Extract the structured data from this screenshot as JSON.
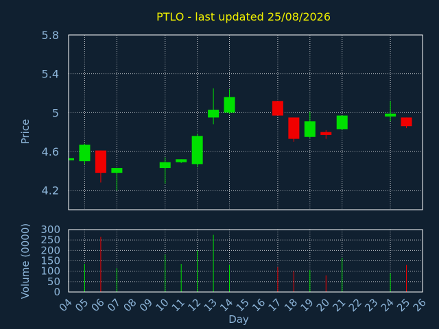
{
  "chart_data": {
    "type": "candlestick",
    "title": "PTLO - last updated 25/08/2026",
    "xlabel": "Day",
    "colors": {
      "background": "#102030",
      "axis_text": "#8cb4d8",
      "title": "#f0f000",
      "frame": "#ffffff",
      "grid": "#ffffff",
      "up": "#00e000",
      "down": "#f00000"
    },
    "price_panel": {
      "ylabel": "Price",
      "ylim": [
        4.0,
        5.8
      ],
      "yticks": [
        "4.2",
        "4.6",
        "5",
        "5.4",
        "5.8"
      ],
      "ytick_values": [
        4.2,
        4.6,
        5.0,
        5.4,
        5.8
      ]
    },
    "volume_panel": {
      "ylabel": "Volume (0000)",
      "ylim": [
        0,
        300
      ],
      "yticks": [
        "0",
        "50",
        "100",
        "150",
        "200",
        "250",
        "300"
      ],
      "ytick_values": [
        0,
        50,
        100,
        150,
        200,
        250,
        300
      ]
    },
    "xticks": [
      "04",
      "05",
      "06",
      "07",
      "08",
      "09",
      "10",
      "11",
      "12",
      "13",
      "14",
      "15",
      "16",
      "17",
      "18",
      "19",
      "20",
      "21",
      "22",
      "23",
      "24",
      "25",
      "26"
    ],
    "grid_days": [
      "05",
      "07",
      "10",
      "12",
      "14",
      "17",
      "19",
      "21",
      "24"
    ],
    "candles": [
      {
        "day": "04",
        "open": 4.52,
        "high": 4.53,
        "low": 4.51,
        "close": 4.53,
        "volume": 0
      },
      {
        "day": "05",
        "open": 4.5,
        "high": 4.68,
        "low": 4.47,
        "close": 4.67,
        "volume": 135
      },
      {
        "day": "06",
        "open": 4.61,
        "high": 4.61,
        "low": 4.28,
        "close": 4.38,
        "volume": 265
      },
      {
        "day": "07",
        "open": 4.38,
        "high": 4.43,
        "low": 4.2,
        "close": 4.43,
        "volume": 115
      },
      {
        "day": "10",
        "open": 4.43,
        "high": 4.54,
        "low": 4.27,
        "close": 4.49,
        "volume": 180
      },
      {
        "day": "11",
        "open": 4.49,
        "high": 4.52,
        "low": 4.48,
        "close": 4.52,
        "volume": 135
      },
      {
        "day": "12",
        "open": 4.47,
        "high": 4.78,
        "low": 4.44,
        "close": 4.76,
        "volume": 200
      },
      {
        "day": "13",
        "open": 4.95,
        "high": 5.25,
        "low": 4.88,
        "close": 5.03,
        "volume": 275
      },
      {
        "day": "14",
        "open": 5.0,
        "high": 5.24,
        "low": 4.99,
        "close": 5.16,
        "volume": 130
      },
      {
        "day": "17",
        "open": 5.12,
        "high": 5.12,
        "low": 4.97,
        "close": 4.97,
        "volume": 120
      },
      {
        "day": "18",
        "open": 4.95,
        "high": 4.95,
        "low": 4.7,
        "close": 4.73,
        "volume": 100
      },
      {
        "day": "19",
        "open": 4.75,
        "high": 5.01,
        "low": 4.74,
        "close": 4.91,
        "volume": 105
      },
      {
        "day": "20",
        "open": 4.8,
        "high": 4.82,
        "low": 4.73,
        "close": 4.77,
        "volume": 80
      },
      {
        "day": "21",
        "open": 4.83,
        "high": 4.97,
        "low": 4.82,
        "close": 4.97,
        "volume": 165
      },
      {
        "day": "24",
        "open": 4.96,
        "high": 5.12,
        "low": 4.91,
        "close": 4.99,
        "volume": 90
      },
      {
        "day": "25",
        "open": 4.95,
        "high": 4.95,
        "low": 4.84,
        "close": 4.86,
        "volume": 130
      }
    ]
  }
}
